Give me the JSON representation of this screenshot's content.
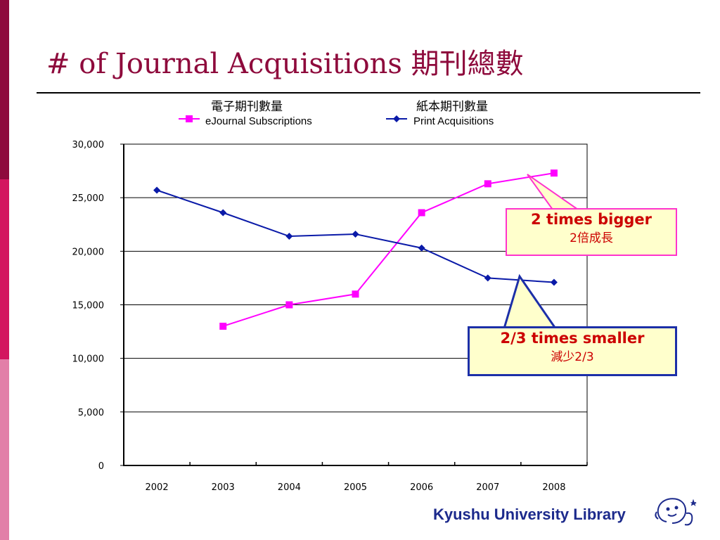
{
  "slide": {
    "title": "# of Journal Acquisitions 期刊總數"
  },
  "chart_data": {
    "type": "line",
    "categories": [
      "2002",
      "2003",
      "2004",
      "2005",
      "2006",
      "2007",
      "2008"
    ],
    "series": [
      {
        "name": "eJournal Subscriptions",
        "name_zh": "電子期刊數量",
        "color": "#ff00ff",
        "marker": "square",
        "values": [
          null,
          13000,
          15000,
          16000,
          23600,
          26300,
          27300
        ]
      },
      {
        "name": "Print Acquisitions",
        "name_zh": "紙本期刊數量",
        "color": "#0a1aa8",
        "marker": "diamond",
        "values": [
          25700,
          23600,
          21400,
          21600,
          20300,
          17500,
          17100
        ]
      }
    ],
    "ylim": [
      0,
      30000
    ],
    "yticks": [
      "0",
      "5,000",
      "10,000",
      "15,000",
      "20,000",
      "25,000",
      "30,000"
    ],
    "ytick_values": [
      0,
      5000,
      10000,
      15000,
      20000,
      25000,
      30000
    ],
    "grid": true,
    "legend_position": "top"
  },
  "annotations": {
    "growth": {
      "main": "2 times bigger",
      "sub": "2倍成長"
    },
    "decline": {
      "main": "2/3 times smaller",
      "sub": "減少2/3"
    }
  },
  "footer": {
    "brand": "Kyushu University Library"
  }
}
